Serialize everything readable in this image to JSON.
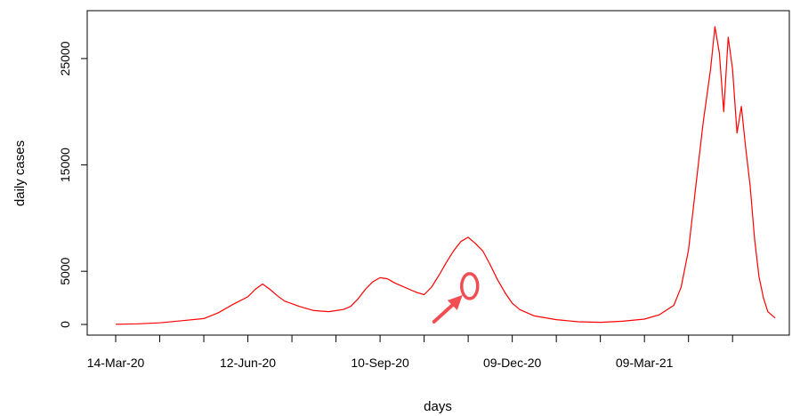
{
  "chart_data": {
    "type": "line",
    "title": "",
    "xlabel": "days",
    "ylabel": "daily cases",
    "x_axis": {
      "start_date": "2020-03-14",
      "end_date": "2021-06-02",
      "tick_labels": [
        "14-Mar-20",
        "12-Jun-20",
        "10-Sep-20",
        "09-Dec-20",
        "09-Mar-21"
      ]
    },
    "y_axis": {
      "ylim": [
        0,
        28000
      ],
      "tick_values": [
        0,
        5000,
        15000,
        25000
      ],
      "tick_labels": [
        "0",
        "5000",
        "15000",
        "25000"
      ]
    },
    "grid": false,
    "legend": "none",
    "series": [
      {
        "color": "#ff0000",
        "points": [
          [
            "2020-03-14",
            20
          ],
          [
            "2020-03-29",
            60
          ],
          [
            "2020-04-13",
            150
          ],
          [
            "2020-04-28",
            350
          ],
          [
            "2020-05-13",
            550
          ],
          [
            "2020-05-23",
            1100
          ],
          [
            "2020-06-02",
            1900
          ],
          [
            "2020-06-12",
            2600
          ],
          [
            "2020-06-17",
            3300
          ],
          [
            "2020-06-22",
            3800
          ],
          [
            "2020-06-27",
            3300
          ],
          [
            "2020-07-02",
            2700
          ],
          [
            "2020-07-07",
            2200
          ],
          [
            "2020-07-17",
            1700
          ],
          [
            "2020-07-27",
            1300
          ],
          [
            "2020-08-06",
            1200
          ],
          [
            "2020-08-16",
            1400
          ],
          [
            "2020-08-21",
            1700
          ],
          [
            "2020-08-26",
            2400
          ],
          [
            "2020-08-31",
            3300
          ],
          [
            "2020-09-05",
            4000
          ],
          [
            "2020-09-10",
            4400
          ],
          [
            "2020-09-15",
            4300
          ],
          [
            "2020-09-20",
            3900
          ],
          [
            "2020-09-25",
            3600
          ],
          [
            "2020-09-30",
            3300
          ],
          [
            "2020-10-05",
            3000
          ],
          [
            "2020-10-10",
            2800
          ],
          [
            "2020-10-15",
            3500
          ],
          [
            "2020-10-20",
            4600
          ],
          [
            "2020-10-25",
            5800
          ],
          [
            "2020-10-30",
            6900
          ],
          [
            "2020-11-04",
            7800
          ],
          [
            "2020-11-09",
            8200
          ],
          [
            "2020-11-14",
            7600
          ],
          [
            "2020-11-19",
            6900
          ],
          [
            "2020-11-24",
            5600
          ],
          [
            "2020-11-29",
            4200
          ],
          [
            "2020-12-04",
            3000
          ],
          [
            "2020-12-09",
            2000
          ],
          [
            "2020-12-14",
            1400
          ],
          [
            "2020-12-24",
            800
          ],
          [
            "2021-01-08",
            450
          ],
          [
            "2021-01-23",
            250
          ],
          [
            "2021-02-07",
            200
          ],
          [
            "2021-02-22",
            300
          ],
          [
            "2021-03-09",
            500
          ],
          [
            "2021-03-19",
            900
          ],
          [
            "2021-03-29",
            1800
          ],
          [
            "2021-04-03",
            3500
          ],
          [
            "2021-04-08",
            7000
          ],
          [
            "2021-04-13",
            13000
          ],
          [
            "2021-04-18",
            19000
          ],
          [
            "2021-04-23",
            24000
          ],
          [
            "2021-04-26",
            28000
          ],
          [
            "2021-04-29",
            25500
          ],
          [
            "2021-05-02",
            20000
          ],
          [
            "2021-05-05",
            27000
          ],
          [
            "2021-05-08",
            24000
          ],
          [
            "2021-05-11",
            18000
          ],
          [
            "2021-05-14",
            20500
          ],
          [
            "2021-05-17",
            16500
          ],
          [
            "2021-05-20",
            13000
          ],
          [
            "2021-05-23",
            8000
          ],
          [
            "2021-05-26",
            4500
          ],
          [
            "2021-05-29",
            2500
          ],
          [
            "2021-06-01",
            1200
          ],
          [
            "2021-06-06",
            600
          ]
        ]
      }
    ]
  },
  "annotation": {
    "color": "#f24d52",
    "marks_date": "2020-11-10",
    "marks_value": 3600
  }
}
